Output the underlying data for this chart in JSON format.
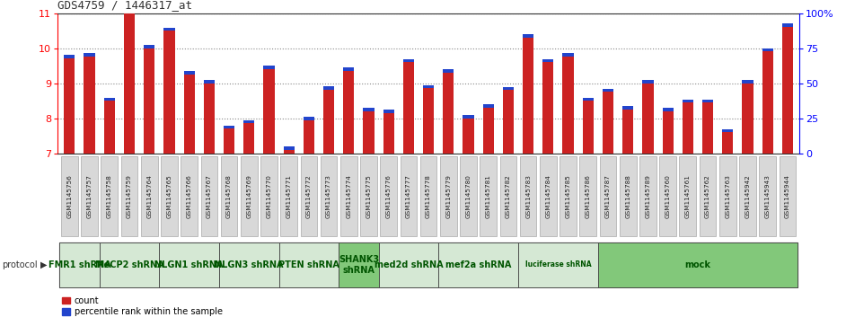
{
  "title": "GDS4759 / 1446317_at",
  "samples": [
    "GSM1145756",
    "GSM1145757",
    "GSM1145758",
    "GSM1145759",
    "GSM1145764",
    "GSM1145765",
    "GSM1145766",
    "GSM1145767",
    "GSM1145768",
    "GSM1145769",
    "GSM1145770",
    "GSM1145771",
    "GSM1145772",
    "GSM1145773",
    "GSM1145774",
    "GSM1145775",
    "GSM1145776",
    "GSM1145777",
    "GSM1145778",
    "GSM1145779",
    "GSM1145780",
    "GSM1145781",
    "GSM1145782",
    "GSM1145783",
    "GSM1145784",
    "GSM1145785",
    "GSM1145786",
    "GSM1145787",
    "GSM1145788",
    "GSM1145789",
    "GSM1145760",
    "GSM1145761",
    "GSM1145762",
    "GSM1145763",
    "GSM1145942",
    "GSM1145943",
    "GSM1145944"
  ],
  "red_values": [
    9.7,
    9.75,
    8.5,
    11.05,
    10.0,
    10.5,
    9.25,
    9.0,
    7.7,
    7.85,
    9.4,
    7.1,
    7.95,
    8.8,
    9.35,
    8.2,
    8.15,
    9.6,
    8.85,
    9.3,
    8.0,
    8.3,
    8.8,
    10.3,
    9.6,
    9.75,
    8.5,
    8.75,
    8.25,
    9.0,
    8.2,
    8.45,
    8.45,
    7.6,
    9.0,
    9.9,
    10.6
  ],
  "blue_heights": [
    0.1,
    0.1,
    0.09,
    0.1,
    0.1,
    0.09,
    0.09,
    0.1,
    0.09,
    0.1,
    0.1,
    0.1,
    0.09,
    0.1,
    0.09,
    0.09,
    0.09,
    0.09,
    0.09,
    0.09,
    0.09,
    0.09,
    0.09,
    0.1,
    0.09,
    0.1,
    0.09,
    0.09,
    0.09,
    0.09,
    0.09,
    0.09,
    0.09,
    0.09,
    0.09,
    0.09,
    0.1
  ],
  "protocols": [
    {
      "label": "FMR1 shRNA",
      "start": 0,
      "end": 2,
      "color": "#d5e8d4"
    },
    {
      "label": "MeCP2 shRNA",
      "start": 2,
      "end": 5,
      "color": "#d5e8d4"
    },
    {
      "label": "NLGN1 shRNA",
      "start": 5,
      "end": 8,
      "color": "#d5e8d4"
    },
    {
      "label": "NLGN3 shRNA",
      "start": 8,
      "end": 11,
      "color": "#d5e8d4"
    },
    {
      "label": "PTEN shRNA",
      "start": 11,
      "end": 14,
      "color": "#d5e8d4"
    },
    {
      "label": "SHANK3\nshRNA",
      "start": 14,
      "end": 16,
      "color": "#82c87a"
    },
    {
      "label": "med2d shRNA",
      "start": 16,
      "end": 19,
      "color": "#d5e8d4"
    },
    {
      "label": "mef2a shRNA",
      "start": 19,
      "end": 23,
      "color": "#d5e8d4"
    },
    {
      "label": "luciferase shRNA",
      "start": 23,
      "end": 27,
      "color": "#d5e8d4"
    },
    {
      "label": "mock",
      "start": 27,
      "end": 37,
      "color": "#82c87a"
    }
  ],
  "ylim": [
    7.0,
    11.0
  ],
  "yticks_left": [
    7,
    8,
    9,
    10,
    11
  ],
  "bar_color": "#cc2222",
  "blue_color": "#2244cc",
  "grid_color": "#888888",
  "title_color": "#333333",
  "xtick_bg": "#d8d8d8",
  "xtick_border": "#aaaaaa",
  "proto_text_color": "#005500"
}
